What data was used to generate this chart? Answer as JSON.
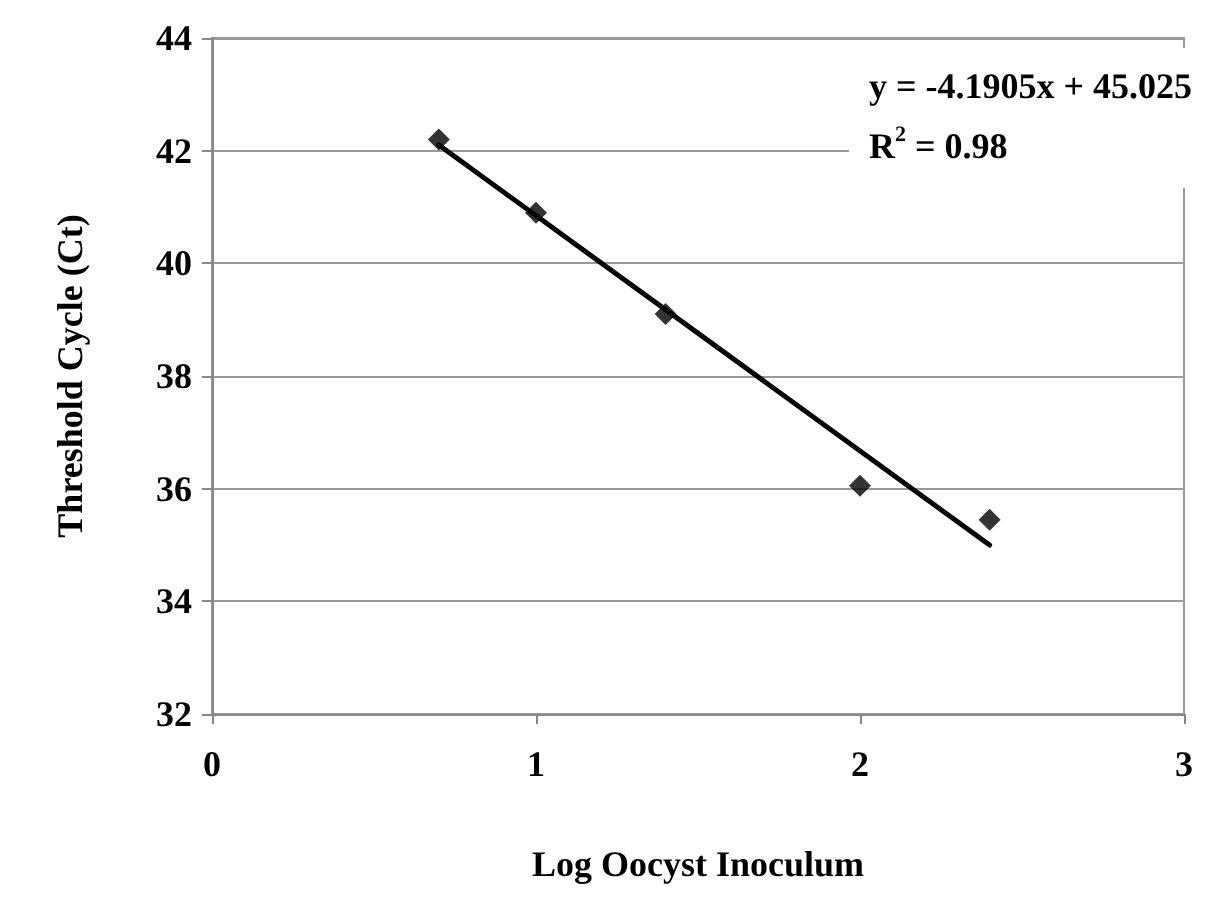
{
  "chart_data": {
    "type": "scatter",
    "xlabel": "Log Oocyst Inoculum",
    "ylabel": "Threshold Cycle (Ct)",
    "x": [
      0.7,
      1,
      1.4,
      2,
      2.4
    ],
    "marker": "diamond",
    "series": [
      {
        "color": "#000000",
        "values": [
          42.2,
          40.9,
          39.1,
          36.05,
          35.45
        ]
      },
      {
        "type": "line",
        "x": [
          0.7,
          2.4
        ],
        "values": [
          42.1,
          35.0
        ],
        "color": "#000000",
        "marker": "none",
        "line_style": "solid"
      }
    ],
    "xlim": [
      0,
      3
    ],
    "xticks": [
      0,
      1,
      2,
      3
    ],
    "ylim": [
      32,
      44
    ],
    "yticks": [
      32,
      34,
      36,
      38,
      40,
      42,
      44
    ],
    "grid": "y",
    "annotations": [
      "y = -4.1905x + 45.025",
      "R$^{2}$ = 0.98"
    ]
  }
}
